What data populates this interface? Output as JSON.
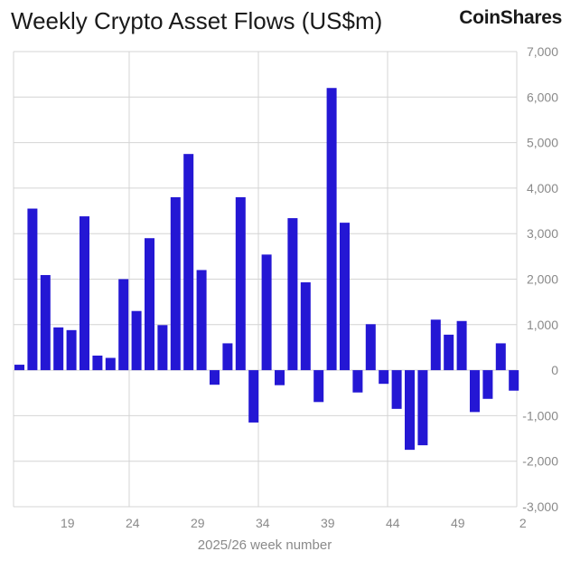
{
  "header": {
    "title": "Weekly Crypto Asset Flows (US$m)",
    "brand": "CoinShares"
  },
  "colors": {
    "bar": "#2417d4",
    "grid": "#d4d4d4",
    "axis_text": "#8a8a8a"
  },
  "chart_data": {
    "type": "bar",
    "title": "Weekly Crypto Asset Flows (US$m)",
    "xlabel": "2025/26 week number",
    "ylabel": "",
    "ylim": [
      -3000,
      7000
    ],
    "yticks": [
      7000,
      6000,
      5000,
      4000,
      3000,
      2000,
      1000,
      0,
      -1000,
      -2000,
      -3000
    ],
    "ytick_labels": [
      "7,000",
      "6,000",
      "5,000",
      "4,000",
      "3,000",
      "2,000",
      "1,000",
      "0",
      "-1,000",
      "-2,000",
      "-3,000"
    ],
    "x_ticks": [
      {
        "label": "19",
        "index": 3
      },
      {
        "label": "24",
        "index": 8
      },
      {
        "label": "29",
        "index": 13
      },
      {
        "label": "34",
        "index": 18
      },
      {
        "label": "39",
        "index": 23
      },
      {
        "label": "44",
        "index": 28
      },
      {
        "label": "49",
        "index": 33
      },
      {
        "label": "2",
        "index": 38
      }
    ],
    "values": [
      120,
      3550,
      2090,
      940,
      880,
      3380,
      320,
      270,
      2000,
      1300,
      2900,
      990,
      3800,
      4750,
      2200,
      -320,
      590,
      3800,
      -1150,
      2540,
      -330,
      3340,
      1930,
      -700,
      6200,
      3240,
      -490,
      1010,
      -300,
      -850,
      -1750,
      -1650,
      1110,
      780,
      1080,
      -920,
      -630,
      590,
      -450
    ],
    "grid": true
  }
}
